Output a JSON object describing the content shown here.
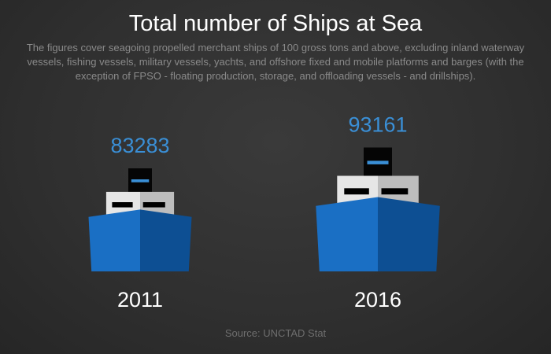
{
  "colors": {
    "value": "#3a8fd6",
    "hull_light": "#1a6fc4",
    "hull_dark": "#0d4f93",
    "cabin": "#e6e6e6",
    "cabin_shade": "#bdbdbd",
    "window": "#000000",
    "funnel": "#050505",
    "funnel_stripe": "#3a8fd6",
    "label": "#ffffff"
  },
  "chart_data": {
    "type": "pictograph",
    "title": "Total number of Ships at Sea",
    "subtitle": "The figures cover seagoing propelled merchant ships of 100 gross tons and above, excluding inland waterway vessels, fishing vessels, military vessels, yachts, and offshore fixed and mobile platforms and barges (with the exception of FPSO - floating production, storage, and offloading vessels - and drillships).",
    "categories": [
      "2011",
      "2016"
    ],
    "values": [
      83283,
      93161
    ],
    "source": "Source: UNCTAD Stat"
  }
}
